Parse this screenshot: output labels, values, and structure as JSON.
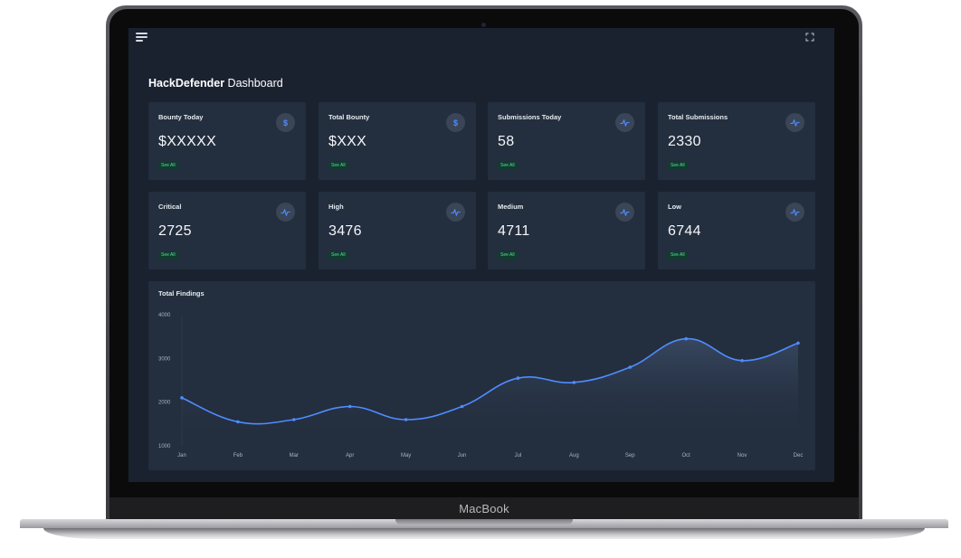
{
  "device": {
    "brand": "MacBook"
  },
  "header": {
    "title_bold": "HackDefender",
    "title_rest": " Dashboard"
  },
  "colors": {
    "background": "#1a2230",
    "card": "#232e3e",
    "accent": "#4f8cff",
    "pill_text": "#5ed69a",
    "pill_bg": "#123b2f"
  },
  "stats": [
    {
      "label": "Bounty Today",
      "value": "$XXXXX",
      "link": "See All",
      "icon": "dollar-icon",
      "glyph": "$"
    },
    {
      "label": "Total Bounty",
      "value": "$XXX",
      "link": "See All",
      "icon": "dollar-icon",
      "glyph": "$"
    },
    {
      "label": "Submissions Today",
      "value": "58",
      "link": "See All",
      "icon": "activity-icon"
    },
    {
      "label": "Total Submissions",
      "value": "2330",
      "link": "See All",
      "icon": "activity-icon"
    },
    {
      "label": "Critical",
      "value": "2725",
      "link": "See All",
      "icon": "activity-icon"
    },
    {
      "label": "High",
      "value": "3476",
      "link": "See All",
      "icon": "activity-icon"
    },
    {
      "label": "Medium",
      "value": "4711",
      "link": "See All",
      "icon": "activity-icon"
    },
    {
      "label": "Low",
      "value": "6744",
      "link": "See All",
      "icon": "activity-icon"
    }
  ],
  "chart_data": {
    "type": "area",
    "title": "Total Findings",
    "categories": [
      "Jan",
      "Feb",
      "Mar",
      "Apr",
      "May",
      "Jun",
      "Jul",
      "Aug",
      "Sep",
      "Oct",
      "Nov",
      "Dec"
    ],
    "y_ticks": [
      "1000",
      "2000",
      "3000",
      "4000"
    ],
    "ylim": [
      1000,
      4000
    ],
    "series": [
      {
        "values": [
          2100,
          1550,
          1600,
          1900,
          1600,
          1900,
          2550,
          2450,
          2800,
          3450,
          2950,
          3350
        ]
      }
    ],
    "color": "#4f8cff",
    "grid": false
  }
}
